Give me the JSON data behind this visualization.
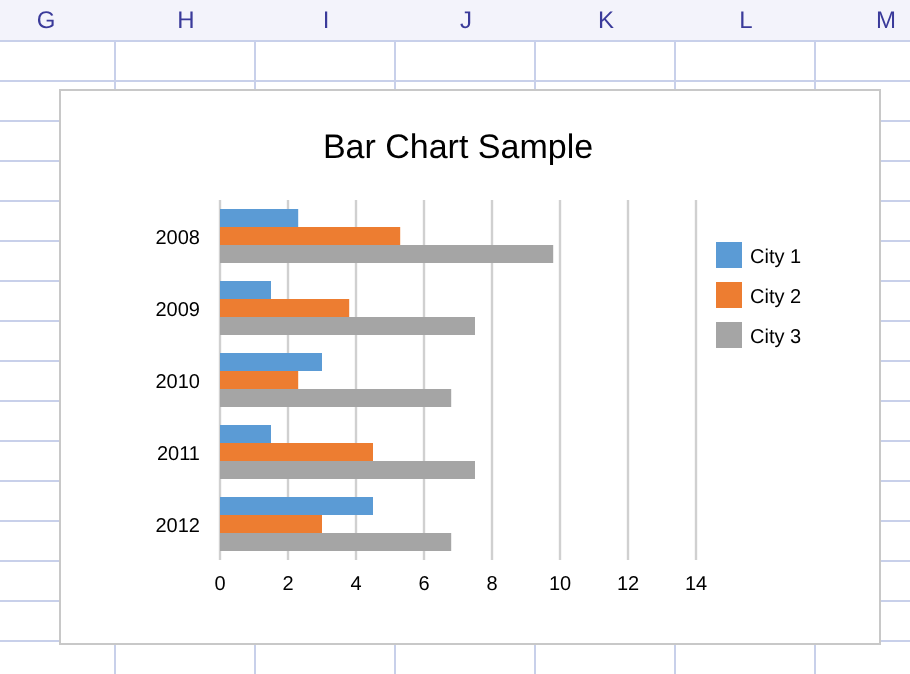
{
  "chart_data": {
    "type": "bar",
    "orientation": "horizontal",
    "title": "Bar Chart Sample",
    "categories": [
      "2008",
      "2009",
      "2010",
      "2011",
      "2012"
    ],
    "series": [
      {
        "name": "City 1",
        "color": "#5b9bd5",
        "values": [
          2.3,
          1.5,
          3.0,
          1.5,
          4.5
        ]
      },
      {
        "name": "City 2",
        "color": "#ed7d31",
        "values": [
          5.3,
          3.8,
          2.3,
          4.5,
          3.0
        ]
      },
      {
        "name": "City 3",
        "color": "#a5a5a5",
        "values": [
          9.8,
          7.5,
          6.8,
          7.5,
          6.8
        ]
      }
    ],
    "xlim": [
      0,
      14
    ],
    "xticks": [
      0,
      2,
      4,
      6,
      8,
      10,
      12,
      14
    ],
    "grid": "x",
    "legend": "right",
    "annotations": [
      "G",
      "H",
      "I",
      "J",
      "K",
      "L",
      "M"
    ]
  }
}
